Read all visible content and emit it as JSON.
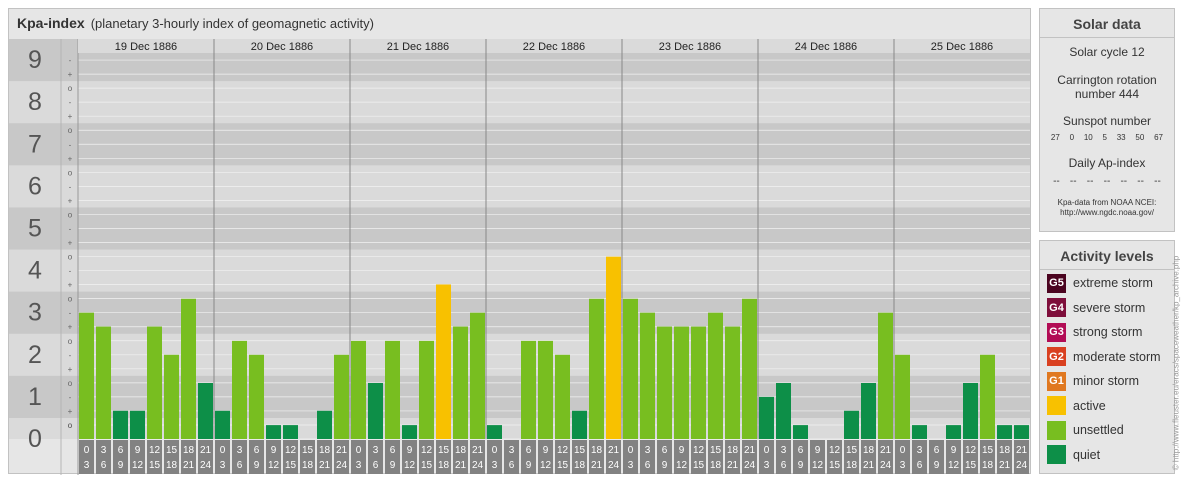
{
  "title": "Kpa-index",
  "subtitle": "(planetary 3-hourly index of geomagnetic activity)",
  "chart_data": {
    "type": "bar",
    "y_ticks": [
      "0",
      "1",
      "2",
      "3",
      "4",
      "5",
      "6",
      "7",
      "8",
      "9"
    ],
    "sub_ticks": [
      "-",
      "o",
      "+"
    ],
    "ylim": [
      0,
      9
    ],
    "days": [
      "19 Dec 1886",
      "20 Dec 1886",
      "21 Dec 1886",
      "22 Dec 1886",
      "23 Dec 1886",
      "24 Dec 1886",
      "25 Dec 1886"
    ],
    "interval_labels": [
      [
        "0",
        "3"
      ],
      [
        "3",
        "6"
      ],
      [
        "6",
        "9"
      ],
      [
        "9",
        "12"
      ],
      [
        "12",
        "15"
      ],
      [
        "15",
        "18"
      ],
      [
        "18",
        "21"
      ],
      [
        "21",
        "24"
      ]
    ],
    "values": [
      [
        3.0,
        2.67,
        0.67,
        0.67,
        2.67,
        2.0,
        3.33,
        1.33
      ],
      [
        0.67,
        2.33,
        2.0,
        0.33,
        0.33,
        0.0,
        0.67,
        2.0
      ],
      [
        2.33,
        1.33,
        2.33,
        0.33,
        2.33,
        3.67,
        2.67,
        3.0
      ],
      [
        0.33,
        0.0,
        2.33,
        2.33,
        2.0,
        0.67,
        3.33,
        4.33
      ],
      [
        3.33,
        3.0,
        2.67,
        2.67,
        2.67,
        3.0,
        2.67,
        3.33
      ],
      [
        1.0,
        1.33,
        0.33,
        0.0,
        0.0,
        0.67,
        1.33,
        3.0
      ],
      [
        2.0,
        0.33,
        0.0,
        0.33,
        1.33,
        2.0,
        0.33,
        0.33
      ]
    ],
    "colors": {
      "quiet": "#0d8f48",
      "unsettled": "#78be20",
      "active": "#f8c100",
      "band_dark": "#c8c8c8",
      "band_light": "#dadada",
      "axis_box": "#828282"
    }
  },
  "solar": {
    "header": "Solar data",
    "cycle": "Solar cycle 12",
    "carrington_line1": "Carrington rotation",
    "carrington_line2": "number 444",
    "sunspot_label": "Sunspot number",
    "sunspot_values": [
      "27",
      "0",
      "10",
      "5",
      "33",
      "50",
      "67"
    ],
    "ap_label": "Daily Ap-index",
    "ap_values": [
      "--",
      "--",
      "--",
      "--",
      "--",
      "--",
      "--"
    ],
    "source_line1": "Kpa-data from NOAA NCEI:",
    "source_line2": "http://www.ngdc.noaa.gov/"
  },
  "activity": {
    "header": "Activity levels",
    "items": [
      {
        "code": "G5",
        "label": "extreme storm",
        "color": "#4b0420"
      },
      {
        "code": "G4",
        "label": "severe storm",
        "color": "#7e0e3b"
      },
      {
        "code": "G3",
        "label": "strong storm",
        "color": "#b20c55"
      },
      {
        "code": "G2",
        "label": "moderate storm",
        "color": "#d94020"
      },
      {
        "code": "G1",
        "label": "minor storm",
        "color": "#e07820"
      },
      {
        "code": "",
        "label": "active",
        "color": "#f8c100"
      },
      {
        "code": "",
        "label": "unsettled",
        "color": "#78be20"
      },
      {
        "code": "",
        "label": "quiet",
        "color": "#0d8f48"
      }
    ]
  },
  "watermark": "© http://www.fleuster.eu/eracs/spaceweather/kp_archive.php"
}
